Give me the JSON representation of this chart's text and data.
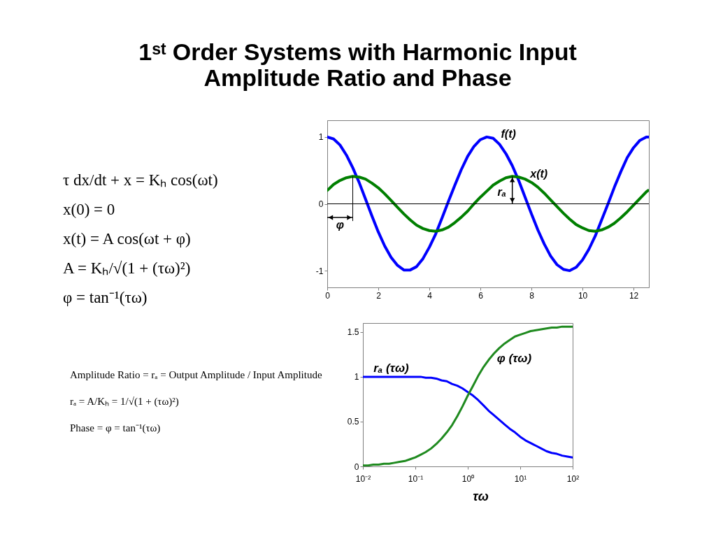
{
  "chart_data": [
    {
      "type": "other",
      "title": "1ˢᵗ Order Systems with Harmonic Input",
      "subtitle": "Amplitude Ratio and Phase",
      "annotations": [
        "τ dx/dt + x = Kₕ cos(ωt)",
        "x(0) = 0",
        "x(t) = A cos(ωt + φ)",
        "A = Kₕ/√(1 + (τω)²)",
        "φ = tan⁻¹(τω)"
      ]
    },
    {
      "type": "line",
      "x": [
        0,
        0.25,
        0.5,
        0.75,
        1,
        1.25,
        1.5,
        1.75,
        2,
        2.25,
        2.5,
        2.75,
        3,
        3.25,
        3.5,
        3.75,
        4,
        4.25,
        4.5,
        4.75,
        5,
        5.25,
        5.5,
        5.75,
        6,
        6.25,
        6.5,
        6.75,
        7,
        7.25,
        7.5,
        7.75,
        8,
        8.25,
        8.5,
        8.75,
        9,
        9.25,
        9.5,
        9.75,
        10,
        10.25,
        10.5,
        10.75,
        11,
        11.25,
        11.5,
        11.75,
        12,
        12.25,
        12.5,
        12.57
      ],
      "series": [
        {
          "name": "f(t)",
          "color": "#0000ff",
          "values": [
            1.0,
            0.97,
            0.88,
            0.73,
            0.54,
            0.32,
            0.07,
            -0.18,
            -0.42,
            -0.63,
            -0.8,
            -0.92,
            -0.99,
            -0.99,
            -0.94,
            -0.82,
            -0.65,
            -0.45,
            -0.21,
            0.04,
            0.28,
            0.51,
            0.71,
            0.86,
            0.96,
            1.0,
            0.98,
            0.89,
            0.75,
            0.57,
            0.35,
            0.1,
            -0.15,
            -0.39,
            -0.6,
            -0.78,
            -0.91,
            -0.98,
            -1.0,
            -0.95,
            -0.84,
            -0.68,
            -0.48,
            -0.24,
            0.0,
            0.25,
            0.48,
            0.69,
            0.84,
            0.95,
            1.0,
            1.0
          ]
        },
        {
          "name": "x(t)",
          "color": "#007f00",
          "values": [
            0.2,
            0.29,
            0.35,
            0.39,
            0.41,
            0.4,
            0.37,
            0.31,
            0.24,
            0.15,
            0.05,
            -0.05,
            -0.15,
            -0.24,
            -0.32,
            -0.37,
            -0.4,
            -0.41,
            -0.39,
            -0.35,
            -0.28,
            -0.2,
            -0.11,
            0.0,
            0.1,
            0.19,
            0.28,
            0.34,
            0.39,
            0.41,
            0.4,
            0.37,
            0.32,
            0.25,
            0.16,
            0.06,
            -0.04,
            -0.14,
            -0.23,
            -0.31,
            -0.36,
            -0.4,
            -0.41,
            -0.39,
            -0.35,
            -0.29,
            -0.21,
            -0.12,
            -0.02,
            0.08,
            0.18,
            0.2
          ]
        }
      ],
      "xlim": [
        0,
        12.6
      ],
      "ylim": [
        -1.25,
        1.25
      ],
      "xticks": [
        0,
        2,
        4,
        6,
        8,
        10,
        12
      ],
      "yticks": [
        -1,
        0,
        1
      ],
      "ref_lines": [
        {
          "axis": "y",
          "value": 0,
          "color": "#000000"
        }
      ],
      "annotations": [
        {
          "text": "rₐ",
          "x": 7.25,
          "y": 0.41
        },
        {
          "text": "φ",
          "x": 1,
          "y": 0.41
        }
      ]
    },
    {
      "type": "other",
      "annotations": [
        "Amplitude Ratio = rₐ = Output Amplitude / Input Amplitude",
        "rₐ = A/Kₕ = 1/√(1 + (τω)²)",
        "Phase = φ = tan⁻¹(τω)"
      ]
    },
    {
      "type": "line",
      "x": [
        0.01,
        0.0126,
        0.0158,
        0.02,
        0.0251,
        0.0316,
        0.0398,
        0.0501,
        0.0631,
        0.0794,
        0.1,
        0.126,
        0.158,
        0.2,
        0.251,
        0.316,
        0.398,
        0.501,
        0.631,
        0.794,
        1,
        1.26,
        1.58,
        2,
        2.51,
        3.16,
        3.98,
        5.01,
        6.31,
        7.94,
        10,
        12.6,
        15.8,
        20,
        25.1,
        31.6,
        39.8,
        50.1,
        63.1,
        79.4,
        100
      ],
      "series": [
        {
          "name": "rₐ (τω)",
          "color": "#0000ff",
          "values": [
            1.0,
            1.0,
            1.0,
            1.0,
            1.0,
            1.0,
            1.0,
            1.0,
            1.0,
            1.0,
            1.0,
            1.0,
            0.99,
            0.99,
            0.98,
            0.96,
            0.95,
            0.92,
            0.9,
            0.87,
            0.83,
            0.79,
            0.74,
            0.68,
            0.62,
            0.57,
            0.52,
            0.47,
            0.42,
            0.38,
            0.33,
            0.29,
            0.26,
            0.23,
            0.2,
            0.17,
            0.15,
            0.14,
            0.12,
            0.11,
            0.1
          ]
        },
        {
          "name": "φ (τω)",
          "color": "#1f8a1f",
          "values": [
            0.01,
            0.01,
            0.02,
            0.02,
            0.03,
            0.03,
            0.04,
            0.05,
            0.06,
            0.08,
            0.1,
            0.13,
            0.16,
            0.2,
            0.25,
            0.31,
            0.38,
            0.46,
            0.56,
            0.67,
            0.79,
            0.9,
            1.01,
            1.11,
            1.19,
            1.26,
            1.32,
            1.37,
            1.41,
            1.45,
            1.47,
            1.49,
            1.51,
            1.52,
            1.53,
            1.54,
            1.55,
            1.55,
            1.56,
            1.56,
            1.56
          ]
        }
      ],
      "xlim": [
        0.01,
        100
      ],
      "ylim": [
        0,
        1.6
      ],
      "log": "x",
      "xlabel": "τω",
      "xticks": [
        {
          "value": 0.01,
          "label": "10⁻²"
        },
        {
          "value": 0.1,
          "label": "10⁻¹"
        },
        {
          "value": 1,
          "label": "10⁰"
        },
        {
          "value": 10,
          "label": "10¹"
        },
        {
          "value": 100,
          "label": "10²"
        }
      ],
      "yticks": [
        0,
        0.5,
        1,
        1.5
      ]
    }
  ]
}
